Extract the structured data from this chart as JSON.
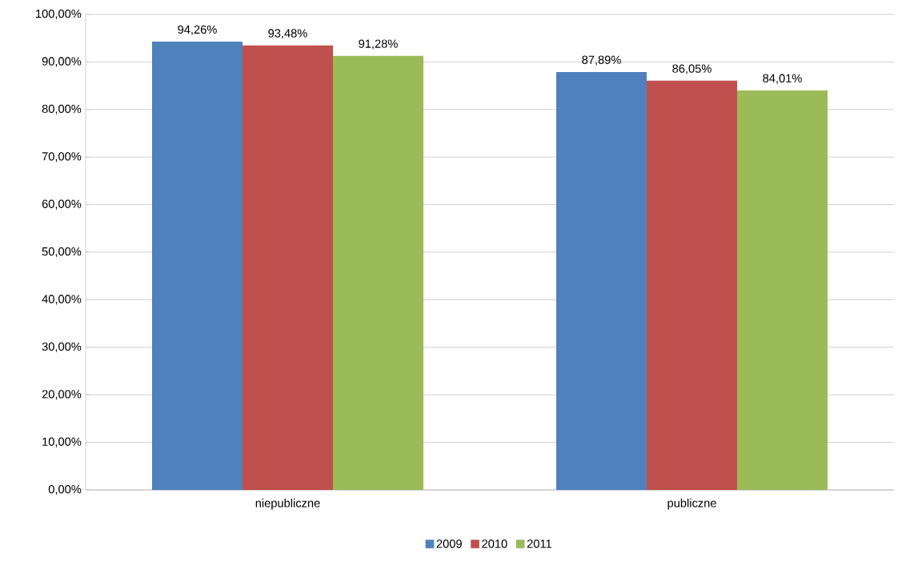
{
  "chart_data": {
    "type": "bar",
    "categories": [
      "niepubliczne",
      "publiczne"
    ],
    "series": [
      {
        "name": "2009",
        "color": "#4f81bd",
        "values": [
          94.26,
          87.89
        ],
        "value_labels": [
          "94,26%",
          "87,89%"
        ]
      },
      {
        "name": "2010",
        "color": "#c0504d",
        "values": [
          93.48,
          86.05
        ],
        "value_labels": [
          "93,48%",
          "86,05%"
        ]
      },
      {
        "name": "2011",
        "color": "#9bbb59",
        "values": [
          91.28,
          84.01
        ],
        "value_labels": [
          "91,28%",
          "84,01%"
        ]
      }
    ],
    "ylim": [
      0,
      100
    ],
    "yticks": [
      {
        "value": 0,
        "label": "0,00%"
      },
      {
        "value": 10,
        "label": "10,00%"
      },
      {
        "value": 20,
        "label": "20,00%"
      },
      {
        "value": 30,
        "label": "30,00%"
      },
      {
        "value": 40,
        "label": "40,00%"
      },
      {
        "value": 50,
        "label": "50,00%"
      },
      {
        "value": 60,
        "label": "60,00%"
      },
      {
        "value": 70,
        "label": "70,00%"
      },
      {
        "value": 80,
        "label": "80,00%"
      },
      {
        "value": 90,
        "label": "90,00%"
      },
      {
        "value": 100,
        "label": "100,00%"
      }
    ],
    "grid": "y",
    "legend": "bottom"
  }
}
